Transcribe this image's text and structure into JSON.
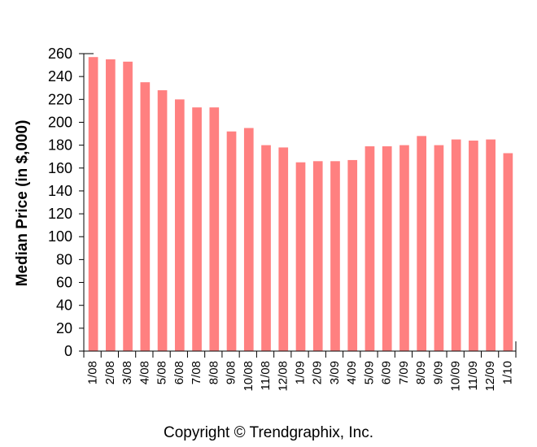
{
  "chart_data": {
    "type": "bar",
    "ylabel": "Median Price (in $,000)",
    "ylim": [
      0,
      260
    ],
    "yticks": [
      0,
      20,
      40,
      60,
      80,
      100,
      120,
      140,
      160,
      180,
      200,
      220,
      240,
      260
    ],
    "categories": [
      "1/08",
      "2/08",
      "3/08",
      "4/08",
      "5/08",
      "6/08",
      "7/08",
      "8/08",
      "9/08",
      "10/08",
      "11/08",
      "12/08",
      "1/09",
      "2/09",
      "3/09",
      "4/09",
      "5/09",
      "6/09",
      "7/09",
      "8/09",
      "9/09",
      "10/09",
      "11/09",
      "12/09",
      "1/10"
    ],
    "values": [
      257,
      255,
      253,
      235,
      228,
      220,
      213,
      213,
      192,
      195,
      180,
      178,
      165,
      166,
      166,
      167,
      179,
      179,
      180,
      188,
      180,
      185,
      184,
      185,
      173
    ],
    "bar_color": "#ff8080",
    "grid": false,
    "legend": "none"
  },
  "footer": {
    "copyright": "Copyright © Trendgraphix, Inc."
  }
}
